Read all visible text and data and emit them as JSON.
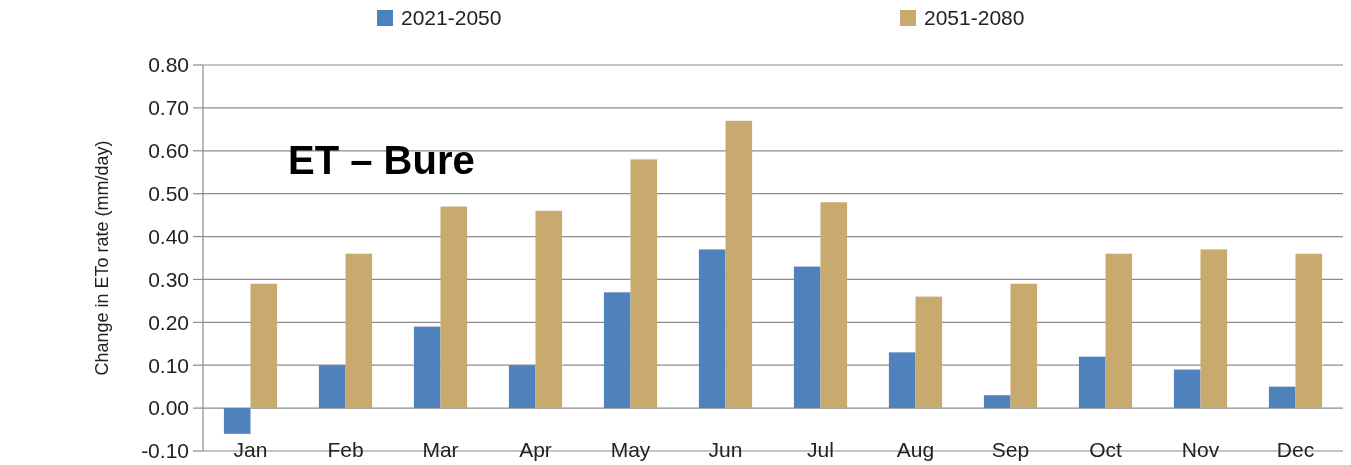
{
  "chart_data": {
    "type": "bar",
    "title": "ET – Bure",
    "ylabel": "Change in ETo rate (mm/day)",
    "categories": [
      "Jan",
      "Feb",
      "Mar",
      "Apr",
      "May",
      "Jun",
      "Jul",
      "Aug",
      "Sep",
      "Oct",
      "Nov",
      "Dec"
    ],
    "series": [
      {
        "name": "2021-2050",
        "color": "#4f81bd",
        "values": [
          -0.06,
          0.1,
          0.19,
          0.1,
          0.27,
          0.37,
          0.33,
          0.13,
          0.03,
          0.12,
          0.09,
          0.05
        ]
      },
      {
        "name": "2051-2080",
        "color": "#c8aa6e",
        "values": [
          0.29,
          0.36,
          0.47,
          0.46,
          0.58,
          0.67,
          0.48,
          0.26,
          0.29,
          0.36,
          0.37,
          0.36
        ]
      }
    ],
    "ylim": [
      -0.1,
      0.8
    ],
    "yticks": [
      {
        "value": -0.1,
        "label": "-0.10"
      },
      {
        "value": 0,
        "label": "0.00"
      },
      {
        "value": 0.1,
        "label": "0.10"
      },
      {
        "value": 0.2,
        "label": "0.20"
      },
      {
        "value": 0.3,
        "label": "0.30"
      },
      {
        "value": 0.4,
        "label": "0.40"
      },
      {
        "value": 0.5,
        "label": "0.50"
      },
      {
        "value": 0.6,
        "label": "0.60"
      },
      {
        "value": 0.7,
        "label": "0.70"
      },
      {
        "value": 0.8,
        "label": "0.80"
      }
    ],
    "grid": "y",
    "legend": "top"
  }
}
